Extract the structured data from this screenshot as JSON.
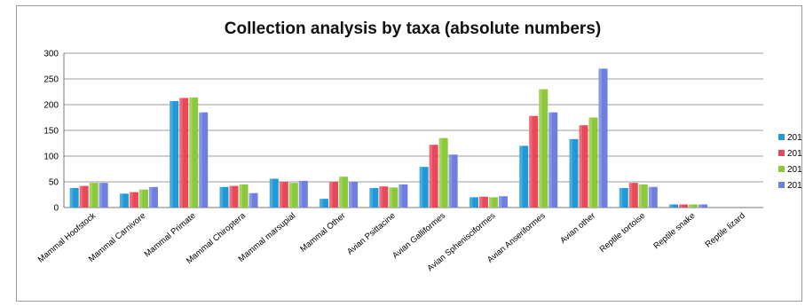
{
  "chart_data": {
    "type": "bar",
    "title": "Collection analysis by taxa (absolute numbers)",
    "xlabel": "",
    "ylabel": "",
    "ylim": [
      0,
      300
    ],
    "yticks": [
      "0",
      "50",
      "100",
      "150",
      "200",
      "250",
      "300"
    ],
    "grid": true,
    "legend_position": "right",
    "categories": [
      "Mammal Hoofstock",
      "Mammal Carnivore",
      "Mammal Primate",
      "Mammal Chiroptera",
      "Mammal marsupial",
      "Mammal Other",
      "Avian Psittacine",
      "Avian Galliformes",
      "Avian Sphenisciformes",
      "Avian Anseriformes",
      "Avian other",
      "Reptile tortoise",
      "Reptile snake",
      "Reptile lizard"
    ],
    "series": [
      {
        "name": "201",
        "color": "#1f9ad6",
        "values": [
          38,
          27,
          207,
          40,
          56,
          17,
          38,
          79,
          20,
          120,
          133,
          38,
          6,
          0
        ]
      },
      {
        "name": "201",
        "color": "#e8485a",
        "values": [
          42,
          30,
          213,
          42,
          50,
          50,
          41,
          122,
          21,
          178,
          160,
          48,
          6,
          0
        ]
      },
      {
        "name": "201",
        "color": "#8bc83a",
        "values": [
          48,
          35,
          214,
          45,
          48,
          60,
          39,
          135,
          20,
          230,
          175,
          45,
          6,
          0
        ]
      },
      {
        "name": "201",
        "color": "#6f7fe0",
        "values": [
          48,
          40,
          185,
          28,
          52,
          50,
          45,
          103,
          22,
          185,
          270,
          40,
          6,
          0
        ]
      }
    ]
  }
}
